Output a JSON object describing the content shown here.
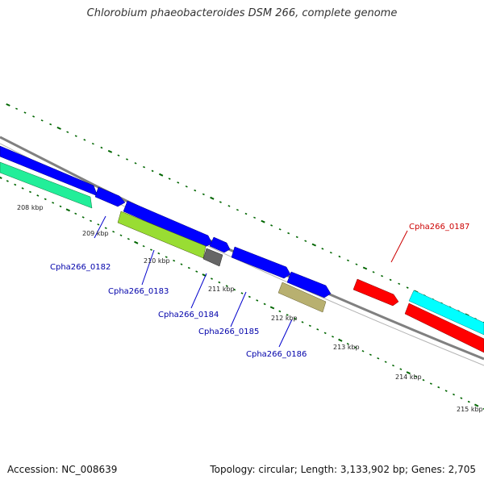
{
  "title": "Chlorobium phaeobacteroides DSM 266, complete genome",
  "footer": {
    "accession": "Accession: NC_008639",
    "stats": "Topology: circular; Length: 3,133,902 bp; Genes: 2,705"
  },
  "scale_labels": [
    "208 kbp",
    "209 kbp",
    "210 kbp",
    "211 kbp",
    "212 kbp",
    "213 kbp",
    "214 kbp",
    "215 kbp"
  ],
  "genes": [
    {
      "label": "Cpha266_0182",
      "color": "#0000aa"
    },
    {
      "label": "Cpha266_0183",
      "color": "#0000aa"
    },
    {
      "label": "Cpha266_0184",
      "color": "#0000aa"
    },
    {
      "label": "Cpha266_0185",
      "color": "#0000aa"
    },
    {
      "label": "Cpha266_0186",
      "color": "#0000aa"
    },
    {
      "label": "Cpha266_0187",
      "color": "#cc0000"
    }
  ],
  "colors": {
    "backbone": "#808080",
    "cds_blue": "#0000ff",
    "cds_red": "#ff0000",
    "cds_cyan": "#00ffff",
    "cds_green": "#22ee99",
    "rna_lime": "#99dd33",
    "rna_gray": "#666666",
    "rna_khaki": "#b8b070",
    "ticks": "#006600"
  }
}
